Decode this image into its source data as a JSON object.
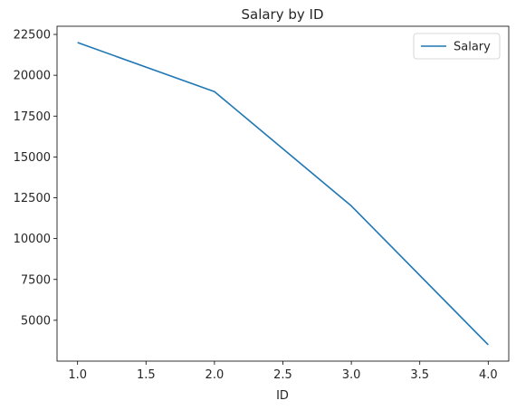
{
  "chart_data": {
    "type": "line",
    "title": "Salary by ID",
    "xlabel": "ID",
    "ylabel": "",
    "x": [
      1,
      2,
      3,
      4
    ],
    "series": [
      {
        "name": "Salary",
        "values": [
          22000,
          19000,
          12000,
          3500
        ],
        "color": "#1f77b4"
      }
    ],
    "xlim": [
      0.85,
      4.15
    ],
    "ylim": [
      2500,
      23000
    ],
    "xticks": [
      1.0,
      1.5,
      2.0,
      2.5,
      3.0,
      3.5,
      4.0
    ],
    "xtick_labels": [
      "1.0",
      "1.5",
      "2.0",
      "2.5",
      "3.0",
      "3.5",
      "4.0"
    ],
    "yticks": [
      5000,
      7500,
      10000,
      12500,
      15000,
      17500,
      20000,
      22500
    ],
    "ytick_labels": [
      "5000",
      "7500",
      "10000",
      "12500",
      "15000",
      "17500",
      "20000",
      "22500"
    ],
    "grid": false,
    "legend": "top-right"
  }
}
